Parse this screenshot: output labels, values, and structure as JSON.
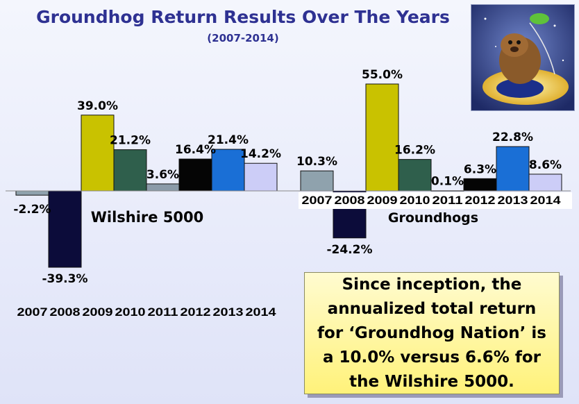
{
  "chart_data": {
    "type": "bar",
    "title": "Groundhog Return Results Over The Years",
    "subtitle": "(2007-2014)",
    "categories": [
      "2007",
      "2008",
      "2009",
      "2010",
      "2011",
      "2012",
      "2013",
      "2014"
    ],
    "groups": [
      {
        "name": "Wilshire 5000",
        "values": [
          -2.2,
          -39.3,
          39.0,
          21.2,
          3.6,
          16.4,
          21.4,
          14.2
        ],
        "labels": [
          "-2.2%",
          "-39.3%",
          "39.0%",
          "21.2%",
          "3.6%",
          "16.4%",
          "21.4%",
          "14.2%"
        ]
      },
      {
        "name": "Groundhogs",
        "values": [
          10.3,
          -24.2,
          55.0,
          16.2,
          0.1,
          6.3,
          22.8,
          8.6
        ],
        "labels": [
          "10.3%",
          "-24.2%",
          "55.0%",
          "16.2%",
          "0.1%",
          "6.3%",
          "22.8%",
          "8.6%"
        ]
      }
    ],
    "colors": [
      "#8fa2ad",
      "#0c0c3a",
      "#c9c200",
      "#2f5f4c",
      "#8a9aa8",
      "#050505",
      "#1a6fd6",
      "#cccdf7"
    ]
  },
  "summary": {
    "lines": [
      "Since inception, the",
      "annualized total return",
      "for ‘Groundhog Nation’ is",
      "a 10.0% versus 6.6% for",
      "the Wilshire 5000."
    ]
  }
}
